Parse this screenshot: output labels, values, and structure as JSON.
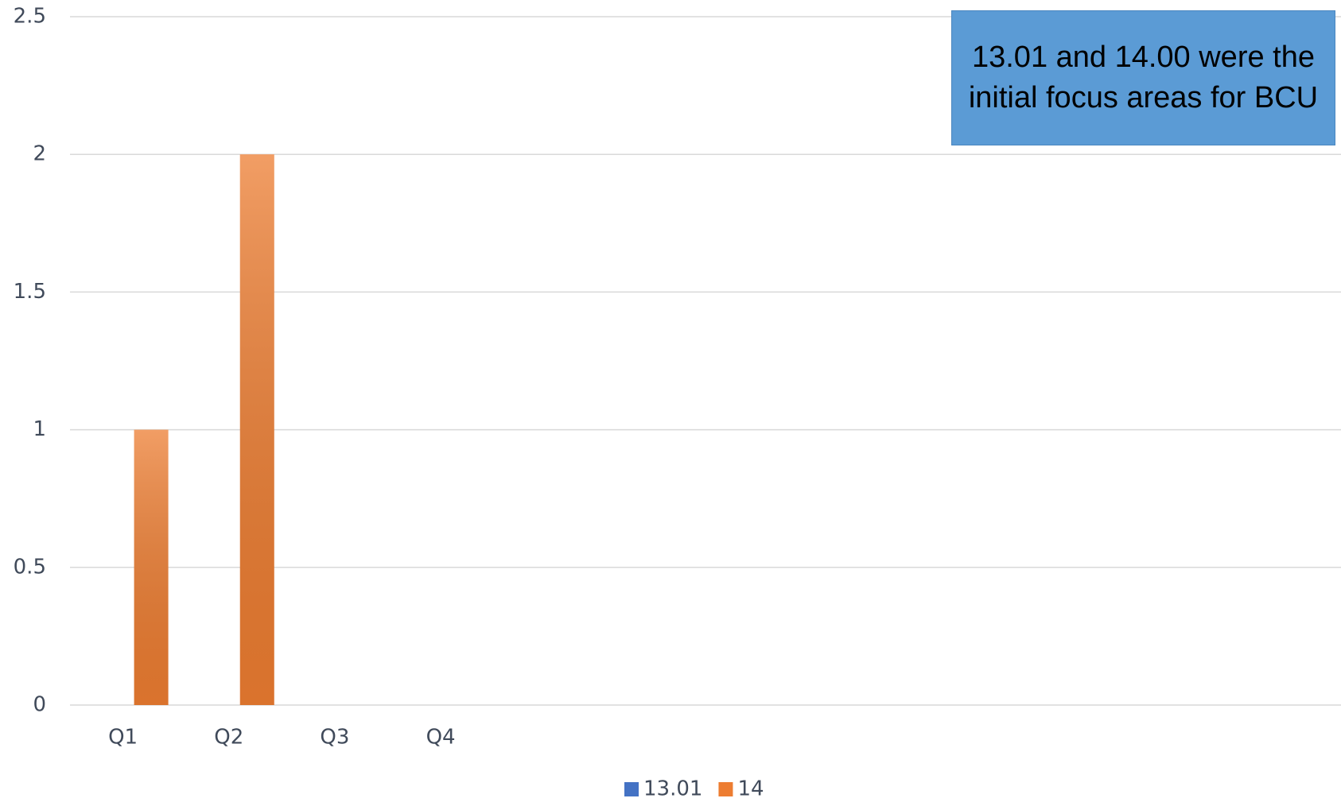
{
  "chart_data": {
    "type": "bar",
    "categories": [
      "Q1",
      "Q2",
      "Q3",
      "Q4",
      null,
      null,
      null,
      null,
      null,
      null,
      null,
      null
    ],
    "series": [
      {
        "name": "13.01",
        "color": "#4472c4",
        "values": [
          0,
          0,
          0,
          0,
          null,
          null,
          null,
          null,
          null,
          null,
          null,
          null
        ]
      },
      {
        "name": "14",
        "color": "#ed7d31",
        "values": [
          1,
          2,
          0,
          0,
          null,
          null,
          null,
          null,
          null,
          null,
          null,
          null
        ]
      }
    ],
    "ylim": [
      0,
      2.5
    ],
    "yticks": [
      0,
      0.5,
      1,
      1.5,
      2,
      2.5
    ],
    "grid": true,
    "legend": "bottom",
    "annotation": "13.01 and 14.00 were the initial focus areas for BCU"
  }
}
